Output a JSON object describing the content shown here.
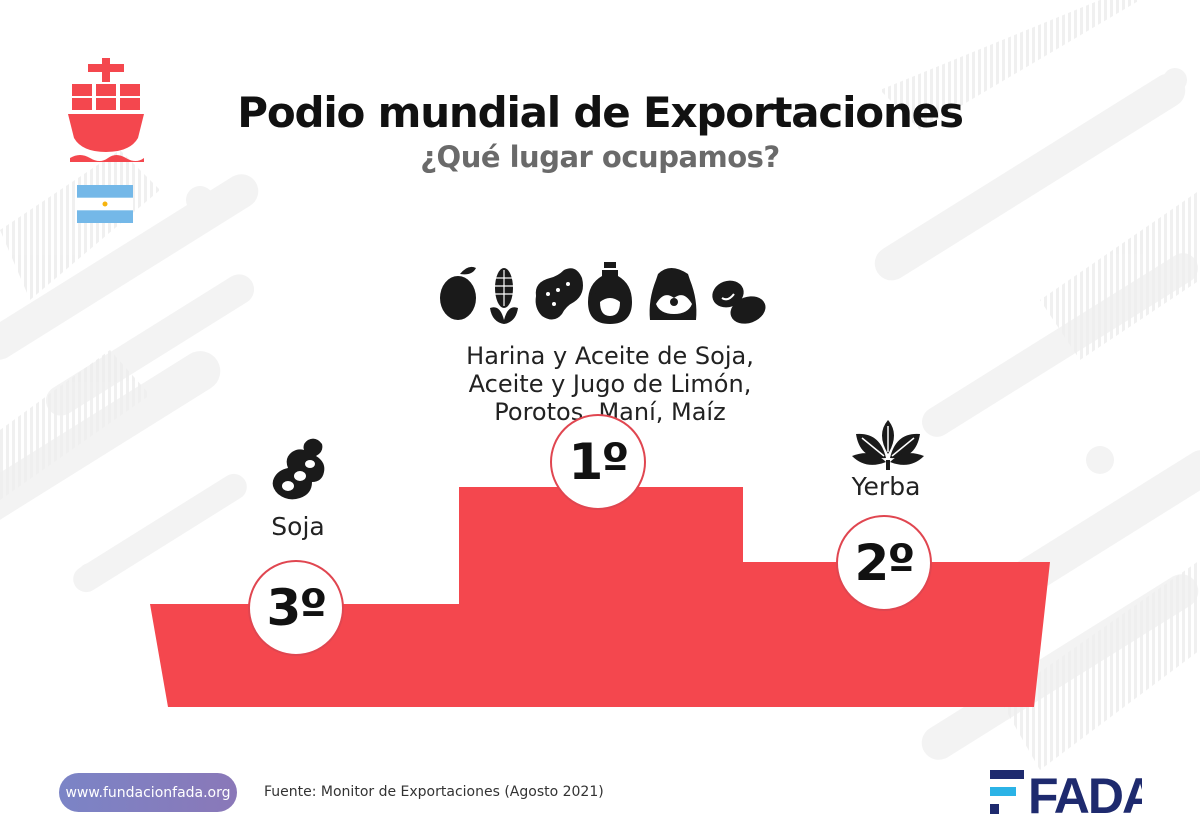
{
  "header": {
    "title": "Podio mundial de Exportaciones",
    "subtitle": "¿Qué lugar ocupamos?"
  },
  "podium": {
    "first": {
      "rank": "1º",
      "products": [
        "Harina y Aceite de Soja,",
        "Aceite y Jugo de Limón,",
        "Porotos, Maní, Maíz"
      ],
      "icons": [
        "lemon-icon",
        "corn-icon",
        "peanut-icon",
        "oil-jug-icon",
        "flour-sack-icon",
        "beans-icon"
      ]
    },
    "second": {
      "rank": "2º",
      "product": "Yerba",
      "icon": "yerba-leaves-icon"
    },
    "third": {
      "rank": "3º",
      "product": "Soja",
      "icon": "soybean-icon"
    }
  },
  "footer": {
    "url": "www.fundacionfada.org",
    "source": "Fuente: Monitor de Exportaciones (Agosto 2021)",
    "logo": "FADA"
  },
  "colors": {
    "podium": "#f4474e",
    "ship": "#f4474e",
    "flag_blue": "#74b8e8",
    "logo_navy": "#1e2a6e",
    "logo_cyan": "#2bb3e6"
  }
}
